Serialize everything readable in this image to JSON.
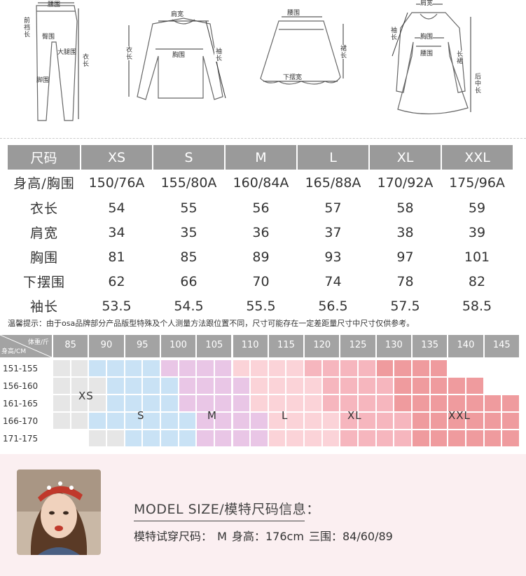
{
  "diagram_labels": {
    "pants": {
      "waist": "腰围",
      "rise": "前裆长",
      "hip": "臀围",
      "thigh": "大腿围",
      "length": "衣长",
      "leg": "脚围"
    },
    "top": {
      "shoulder": "肩宽",
      "length": "衣长",
      "bust": "胸围",
      "sleeve": "袖长"
    },
    "skirt": {
      "waist": "腰围",
      "length": "裙长",
      "hem": "下摆宽"
    },
    "dress": {
      "shoulder": "肩宽",
      "sleeve": "袖长",
      "bust": "胸围",
      "waist": "腰围",
      "back_length": "后中长",
      "skirt_length": "长裙"
    }
  },
  "size_table": {
    "headers": [
      "尺码",
      "XS",
      "S",
      "M",
      "L",
      "XL",
      "XXL"
    ],
    "rows": [
      {
        "label": "身高/胸围",
        "values": [
          "150/76A",
          "155/80A",
          "160/84A",
          "165/88A",
          "170/92A",
          "175/96A"
        ]
      },
      {
        "label": "衣长",
        "values": [
          "54",
          "55",
          "56",
          "57",
          "58",
          "59"
        ]
      },
      {
        "label": "肩宽",
        "values": [
          "34",
          "35",
          "36",
          "37",
          "38",
          "39"
        ]
      },
      {
        "label": "胸围",
        "values": [
          "81",
          "85",
          "89",
          "93",
          "97",
          "101"
        ]
      },
      {
        "label": "下摆围",
        "values": [
          "62",
          "66",
          "70",
          "74",
          "78",
          "82"
        ]
      },
      {
        "label": "袖长",
        "values": [
          "53.5",
          "54.5",
          "55.5",
          "56.5",
          "57.5",
          "58.5"
        ]
      }
    ]
  },
  "notice": "温馨提示：由于osa品牌部分产品版型特殊及个人测量方法跟位置不同，尺寸可能存在一定差距量尺寸中尺寸仅供参考。",
  "grid": {
    "corner_top": "体重/斤",
    "corner_bottom": "身高/CM",
    "weights": [
      "85",
      "90",
      "95",
      "100",
      "105",
      "110",
      "115",
      "120",
      "125",
      "130",
      "135",
      "140",
      "145"
    ],
    "heights": [
      "151-155",
      "156-160",
      "161-165",
      "166-170",
      "171-175"
    ],
    "size_labels": [
      "XS",
      "S",
      "M",
      "L",
      "XL",
      "XXL"
    ],
    "colors": {
      "XS": "#e6e6e6",
      "S": "#c9e2f5",
      "M": "#e9c6e6",
      "L": "#fbd3d8",
      "XL": "#f6b6be",
      "XXL": "#ef9b9e",
      "header": "#a3a3a3"
    }
  },
  "model": {
    "title": "MODEL SIZE/模特尺码信息：",
    "info": "模特试穿尺码： M    身高：176cm    三围：84/60/89"
  }
}
